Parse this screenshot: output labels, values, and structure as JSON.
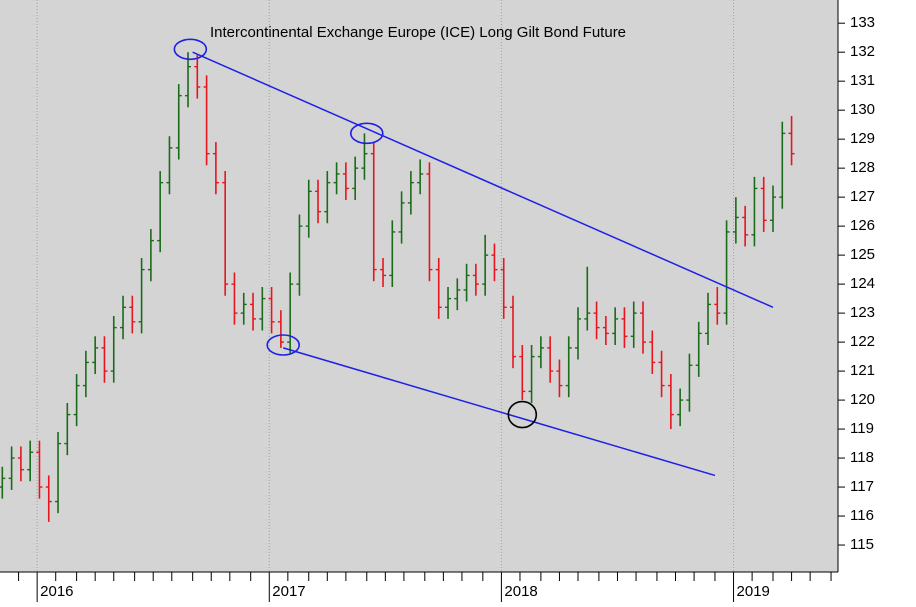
{
  "chart_data": {
    "type": "ohlc",
    "title": "Intercontinental Exchange Europe (ICE) Long Gilt Bond Future",
    "x": [
      2015.85,
      2015.89,
      2015.93,
      2015.97,
      2016.01,
      2016.05,
      2016.09,
      2016.13,
      2016.17,
      2016.21,
      2016.25,
      2016.29,
      2016.33,
      2016.37,
      2016.41,
      2016.45,
      2016.49,
      2016.53,
      2016.57,
      2016.61,
      2016.65,
      2016.69,
      2016.73,
      2016.77,
      2016.81,
      2016.85,
      2016.89,
      2016.93,
      2016.97,
      2017.01,
      2017.05,
      2017.09,
      2017.13,
      2017.17,
      2017.21,
      2017.25,
      2017.29,
      2017.33,
      2017.37,
      2017.41,
      2017.45,
      2017.49,
      2017.53,
      2017.57,
      2017.61,
      2017.65,
      2017.69,
      2017.73,
      2017.77,
      2017.81,
      2017.85,
      2017.89,
      2017.93,
      2017.97,
      2018.01,
      2018.05,
      2018.09,
      2018.13,
      2018.17,
      2018.21,
      2018.25,
      2018.29,
      2018.33,
      2018.37,
      2018.41,
      2018.45,
      2018.49,
      2018.53,
      2018.57,
      2018.61,
      2018.65,
      2018.69,
      2018.73,
      2018.77,
      2018.81,
      2018.85,
      2018.89,
      2018.93,
      2018.97,
      2019.01,
      2019.05,
      2019.09,
      2019.13,
      2019.17,
      2019.21,
      2019.25
    ],
    "open": [
      117.0,
      117.3,
      118.0,
      117.6,
      118.2,
      117.0,
      116.5,
      118.5,
      119.5,
      120.5,
      121.3,
      121.8,
      121.0,
      122.5,
      123.2,
      122.7,
      124.5,
      125.5,
      127.5,
      128.7,
      130.5,
      131.5,
      130.8,
      128.5,
      127.5,
      124.0,
      123.0,
      123.3,
      122.8,
      123.5,
      122.7,
      122.0,
      124.0,
      126.0,
      127.2,
      126.5,
      127.5,
      127.8,
      127.3,
      128.0,
      128.5,
      124.5,
      124.3,
      125.8,
      126.8,
      127.5,
      127.8,
      124.5,
      123.2,
      123.5,
      123.8,
      124.3,
      124.0,
      125.0,
      124.5,
      123.2,
      121.5,
      120.3,
      121.5,
      121.8,
      121.0,
      120.5,
      121.8,
      122.8,
      123.0,
      122.5,
      122.3,
      122.8,
      122.2,
      123.0,
      122.0,
      121.3,
      120.5,
      119.5,
      120.0,
      121.2,
      122.3,
      123.3,
      123.0,
      125.8,
      126.3,
      125.7,
      127.3,
      126.2,
      127.0,
      129.2
    ],
    "high": [
      117.7,
      118.4,
      118.4,
      118.6,
      118.6,
      117.4,
      118.9,
      119.9,
      120.9,
      121.7,
      122.2,
      122.2,
      122.9,
      123.6,
      123.6,
      124.9,
      125.9,
      127.9,
      129.1,
      130.9,
      132.0,
      131.9,
      131.2,
      128.9,
      127.9,
      124.4,
      123.7,
      123.7,
      123.9,
      123.9,
      123.1,
      124.4,
      126.4,
      127.6,
      127.6,
      127.9,
      128.2,
      128.2,
      128.4,
      129.2,
      128.9,
      124.9,
      126.2,
      127.2,
      127.9,
      128.3,
      128.2,
      124.9,
      123.9,
      124.2,
      124.7,
      124.7,
      125.7,
      125.4,
      124.9,
      123.6,
      121.9,
      121.9,
      122.2,
      122.2,
      121.4,
      122.2,
      123.2,
      124.6,
      123.4,
      122.9,
      123.2,
      123.2,
      123.4,
      123.4,
      122.4,
      121.7,
      120.9,
      120.4,
      121.6,
      122.7,
      123.7,
      123.9,
      126.2,
      127.0,
      126.7,
      127.7,
      127.7,
      127.4,
      129.6,
      129.8
    ],
    "low": [
      116.6,
      116.9,
      117.2,
      117.2,
      116.6,
      115.8,
      116.1,
      118.1,
      119.1,
      120.1,
      120.9,
      120.6,
      120.6,
      122.1,
      122.3,
      122.3,
      124.1,
      125.1,
      127.1,
      128.3,
      130.1,
      130.4,
      128.1,
      127.1,
      123.6,
      122.6,
      122.6,
      122.4,
      122.4,
      122.3,
      121.8,
      121.6,
      123.6,
      125.6,
      126.1,
      126.1,
      127.1,
      126.9,
      126.9,
      127.6,
      124.1,
      123.9,
      123.9,
      125.4,
      126.4,
      127.1,
      124.1,
      122.8,
      122.8,
      123.1,
      123.4,
      123.6,
      123.6,
      124.1,
      122.8,
      121.1,
      120.0,
      119.9,
      121.1,
      120.6,
      120.1,
      120.1,
      121.4,
      122.4,
      122.1,
      121.9,
      121.9,
      121.8,
      121.8,
      121.6,
      120.9,
      120.1,
      119.0,
      119.1,
      119.6,
      120.8,
      121.9,
      122.6,
      122.6,
      125.4,
      125.3,
      125.3,
      125.8,
      125.8,
      126.6,
      128.1
    ],
    "close": [
      117.3,
      118.0,
      117.6,
      118.2,
      117.0,
      116.5,
      118.5,
      119.5,
      120.5,
      121.3,
      121.8,
      121.0,
      122.5,
      123.2,
      122.7,
      124.5,
      125.5,
      127.5,
      128.7,
      130.5,
      131.5,
      130.8,
      128.5,
      127.5,
      124.0,
      123.0,
      123.3,
      122.8,
      123.5,
      122.7,
      122.0,
      124.0,
      126.0,
      127.2,
      126.5,
      127.5,
      127.8,
      127.3,
      128.0,
      128.5,
      124.5,
      124.3,
      125.8,
      126.8,
      127.5,
      127.8,
      124.5,
      123.2,
      123.5,
      123.8,
      124.3,
      124.0,
      125.0,
      124.5,
      123.2,
      121.5,
      120.3,
      121.5,
      121.8,
      121.0,
      120.5,
      121.8,
      122.8,
      123.0,
      122.5,
      122.3,
      122.8,
      122.2,
      123.0,
      122.0,
      121.3,
      120.5,
      119.5,
      120.0,
      121.2,
      122.3,
      123.3,
      123.0,
      125.8,
      126.3,
      125.7,
      127.3,
      126.2,
      127.0,
      129.2,
      128.5
    ],
    "up_color": "#1a6b1a",
    "down_color": "#e8141e",
    "trend_lines": [
      {
        "x": [
          2016.67,
          2019.17
        ],
        "y": [
          132.0,
          123.2
        ],
        "color": "#1f1fe6"
      },
      {
        "x": [
          2017.06,
          2018.92
        ],
        "y": [
          121.8,
          117.4
        ],
        "color": "#1f1fe6"
      }
    ],
    "markers": [
      {
        "x": 2016.66,
        "y": 132.1,
        "color": "#1f1fe6"
      },
      {
        "x": 2017.42,
        "y": 129.2,
        "color": "#1f1fe6"
      },
      {
        "x": 2017.06,
        "y": 121.9,
        "color": "#1f1fe6"
      },
      {
        "x": 2018.09,
        "y": 119.5,
        "color": "#000000"
      }
    ],
    "xlim": [
      2015.84,
      2019.45
    ],
    "ylim": [
      114.07,
      133.8
    ],
    "xticks": [
      {
        "value": 2016,
        "label": "2016"
      },
      {
        "value": 2017,
        "label": "2017"
      },
      {
        "value": 2018,
        "label": "2018"
      },
      {
        "value": 2019,
        "label": "2019"
      }
    ],
    "xminorticks": [
      2015.92,
      2016.08,
      2016.17,
      2016.25,
      2016.33,
      2016.42,
      2016.5,
      2016.58,
      2016.67,
      2016.75,
      2016.83,
      2016.92,
      2017.08,
      2017.17,
      2017.25,
      2017.33,
      2017.42,
      2017.5,
      2017.58,
      2017.67,
      2017.75,
      2017.83,
      2017.92,
      2018.08,
      2018.17,
      2018.25,
      2018.33,
      2018.42,
      2018.5,
      2018.58,
      2018.67,
      2018.75,
      2018.83,
      2018.92,
      2019.08,
      2019.17,
      2019.25,
      2019.33,
      2019.42
    ],
    "yticks": [
      115,
      116,
      117,
      118,
      119,
      120,
      121,
      122,
      123,
      124,
      125,
      126,
      127,
      128,
      129,
      130,
      131,
      132,
      133
    ],
    "xgrid": true
  }
}
